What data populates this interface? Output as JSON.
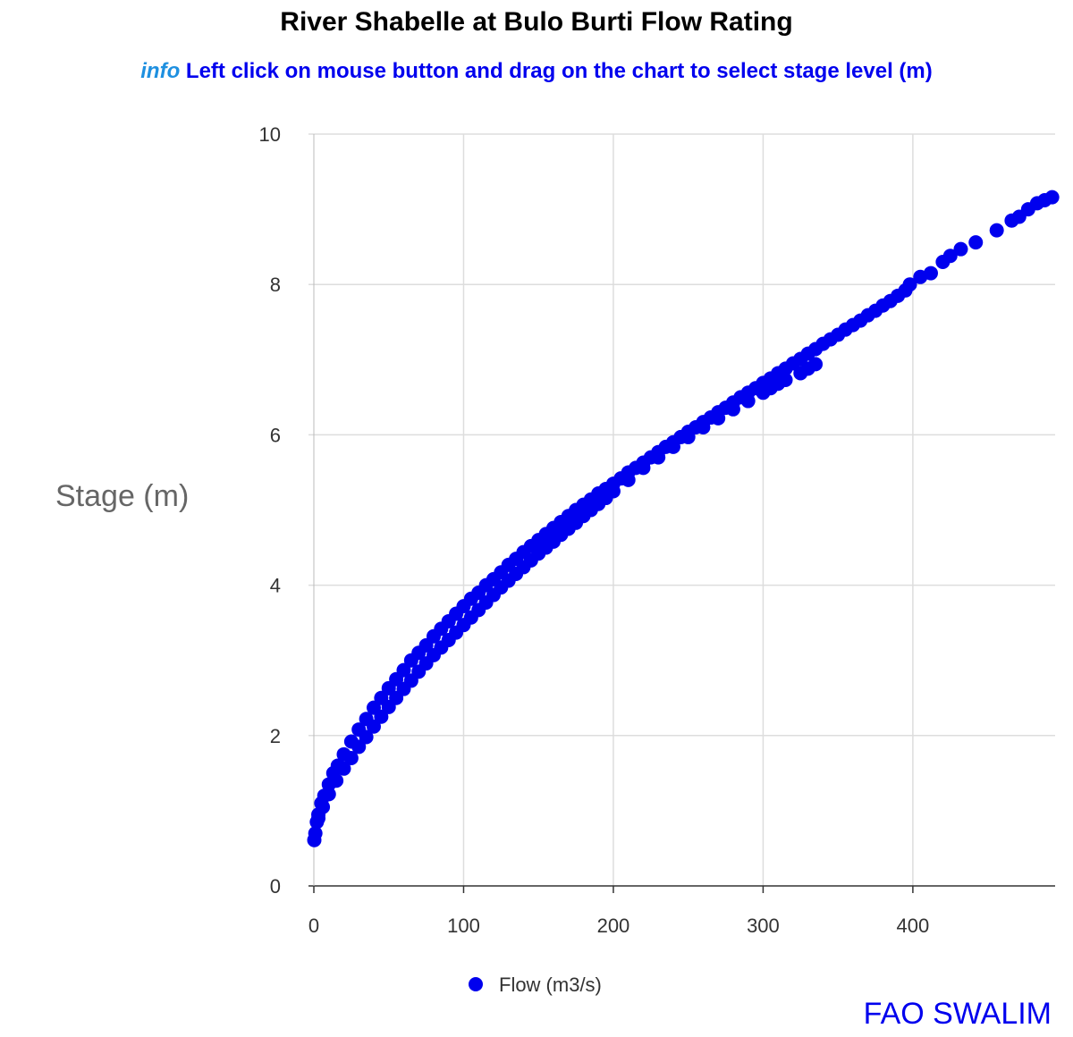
{
  "header": {
    "title": "River Shabelle at Bulo Burti Flow Rating",
    "info_tag": "info",
    "info_text": "Left click on mouse button and drag on the chart to select stage level (m)"
  },
  "footer": {
    "credit": "FAO SWALIM"
  },
  "chart_data": {
    "type": "scatter",
    "ylabel": "Stage (m)",
    "xlabel": "",
    "xlim": [
      0,
      495
    ],
    "ylim": [
      0,
      10
    ],
    "x_ticks": [
      0,
      100,
      200,
      300,
      400
    ],
    "y_ticks": [
      0,
      2,
      4,
      6,
      8,
      10
    ],
    "grid": true,
    "legend_position": "bottom",
    "series": [
      {
        "name": "Flow (m3/s)",
        "color": "#0000ee",
        "points": [
          {
            "x": 0.3,
            "y": 0.61
          },
          {
            "x": 1,
            "y": 0.7
          },
          {
            "x": 2,
            "y": 0.85
          },
          {
            "x": 3,
            "y": 0.95
          },
          {
            "x": 5,
            "y": 1.1
          },
          {
            "x": 7,
            "y": 1.2
          },
          {
            "x": 10,
            "y": 1.35
          },
          {
            "x": 13,
            "y": 1.5
          },
          {
            "x": 16,
            "y": 1.6
          },
          {
            "x": 20,
            "y": 1.75
          },
          {
            "x": 25,
            "y": 1.92
          },
          {
            "x": 30,
            "y": 2.08
          },
          {
            "x": 35,
            "y": 2.22
          },
          {
            "x": 40,
            "y": 2.37
          },
          {
            "x": 45,
            "y": 2.5
          },
          {
            "x": 50,
            "y": 2.63
          },
          {
            "x": 55,
            "y": 2.75
          },
          {
            "x": 60,
            "y": 2.87
          },
          {
            "x": 65,
            "y": 3.0
          },
          {
            "x": 70,
            "y": 3.1
          },
          {
            "x": 75,
            "y": 3.2
          },
          {
            "x": 80,
            "y": 3.32
          },
          {
            "x": 85,
            "y": 3.42
          },
          {
            "x": 90,
            "y": 3.52
          },
          {
            "x": 95,
            "y": 3.62
          },
          {
            "x": 100,
            "y": 3.72
          },
          {
            "x": 105,
            "y": 3.82
          },
          {
            "x": 110,
            "y": 3.9
          },
          {
            "x": 115,
            "y": 4.0
          },
          {
            "x": 120,
            "y": 4.08
          },
          {
            "x": 125,
            "y": 4.17
          },
          {
            "x": 130,
            "y": 4.27
          },
          {
            "x": 135,
            "y": 4.35
          },
          {
            "x": 140,
            "y": 4.44
          },
          {
            "x": 145,
            "y": 4.52
          },
          {
            "x": 150,
            "y": 4.6
          },
          {
            "x": 155,
            "y": 4.68
          },
          {
            "x": 160,
            "y": 4.76
          },
          {
            "x": 165,
            "y": 4.84
          },
          {
            "x": 170,
            "y": 4.92
          },
          {
            "x": 175,
            "y": 5.0
          },
          {
            "x": 180,
            "y": 5.07
          },
          {
            "x": 185,
            "y": 5.14
          },
          {
            "x": 190,
            "y": 5.22
          },
          {
            "x": 195,
            "y": 5.28
          },
          {
            "x": 200,
            "y": 5.35
          },
          {
            "x": 205,
            "y": 5.42
          },
          {
            "x": 210,
            "y": 5.5
          },
          {
            "x": 215,
            "y": 5.56
          },
          {
            "x": 220,
            "y": 5.63
          },
          {
            "x": 225,
            "y": 5.7
          },
          {
            "x": 230,
            "y": 5.77
          },
          {
            "x": 235,
            "y": 5.84
          },
          {
            "x": 240,
            "y": 5.9
          },
          {
            "x": 245,
            "y": 5.97
          },
          {
            "x": 250,
            "y": 6.04
          },
          {
            "x": 255,
            "y": 6.1
          },
          {
            "x": 260,
            "y": 6.17
          },
          {
            "x": 265,
            "y": 6.23
          },
          {
            "x": 270,
            "y": 6.3
          },
          {
            "x": 275,
            "y": 6.36
          },
          {
            "x": 280,
            "y": 6.43
          },
          {
            "x": 285,
            "y": 6.5
          },
          {
            "x": 290,
            "y": 6.56
          },
          {
            "x": 295,
            "y": 6.62
          },
          {
            "x": 300,
            "y": 6.69
          },
          {
            "x": 305,
            "y": 6.75
          },
          {
            "x": 310,
            "y": 6.82
          },
          {
            "x": 315,
            "y": 6.88
          },
          {
            "x": 320,
            "y": 6.95
          },
          {
            "x": 325,
            "y": 7.01
          },
          {
            "x": 330,
            "y": 7.08
          },
          {
            "x": 335,
            "y": 7.14
          },
          {
            "x": 340,
            "y": 7.21
          },
          {
            "x": 345,
            "y": 7.27
          },
          {
            "x": 350,
            "y": 7.33
          },
          {
            "x": 355,
            "y": 7.4
          },
          {
            "x": 360,
            "y": 7.46
          },
          {
            "x": 365,
            "y": 7.52
          },
          {
            "x": 370,
            "y": 7.59
          },
          {
            "x": 375,
            "y": 7.65
          },
          {
            "x": 380,
            "y": 7.72
          },
          {
            "x": 385,
            "y": 7.78
          },
          {
            "x": 390,
            "y": 7.85
          },
          {
            "x": 395,
            "y": 7.92
          },
          {
            "x": 398,
            "y": 8.0
          },
          {
            "x": 3,
            "y": 0.9
          },
          {
            "x": 6,
            "y": 1.05
          },
          {
            "x": 10,
            "y": 1.22
          },
          {
            "x": 15,
            "y": 1.4
          },
          {
            "x": 20,
            "y": 1.56
          },
          {
            "x": 25,
            "y": 1.7
          },
          {
            "x": 30,
            "y": 1.85
          },
          {
            "x": 35,
            "y": 1.98
          },
          {
            "x": 40,
            "y": 2.12
          },
          {
            "x": 45,
            "y": 2.25
          },
          {
            "x": 50,
            "y": 2.38
          },
          {
            "x": 55,
            "y": 2.5
          },
          {
            "x": 60,
            "y": 2.62
          },
          {
            "x": 65,
            "y": 2.73
          },
          {
            "x": 70,
            "y": 2.85
          },
          {
            "x": 75,
            "y": 2.96
          },
          {
            "x": 80,
            "y": 3.07
          },
          {
            "x": 85,
            "y": 3.17
          },
          {
            "x": 90,
            "y": 3.27
          },
          {
            "x": 95,
            "y": 3.37
          },
          {
            "x": 100,
            "y": 3.47
          },
          {
            "x": 105,
            "y": 3.57
          },
          {
            "x": 110,
            "y": 3.67
          },
          {
            "x": 115,
            "y": 3.77
          },
          {
            "x": 120,
            "y": 3.87
          },
          {
            "x": 125,
            "y": 3.97
          },
          {
            "x": 130,
            "y": 4.06
          },
          {
            "x": 135,
            "y": 4.15
          },
          {
            "x": 140,
            "y": 4.24
          },
          {
            "x": 145,
            "y": 4.33
          },
          {
            "x": 150,
            "y": 4.42
          },
          {
            "x": 155,
            "y": 4.5
          },
          {
            "x": 160,
            "y": 4.58
          },
          {
            "x": 165,
            "y": 4.67
          },
          {
            "x": 170,
            "y": 4.75
          },
          {
            "x": 175,
            "y": 4.83
          },
          {
            "x": 180,
            "y": 4.92
          },
          {
            "x": 185,
            "y": 5.0
          },
          {
            "x": 190,
            "y": 5.08
          },
          {
            "x": 195,
            "y": 5.16
          },
          {
            "x": 200,
            "y": 5.25
          },
          {
            "x": 210,
            "y": 5.4
          },
          {
            "x": 220,
            "y": 5.56
          },
          {
            "x": 230,
            "y": 5.7
          },
          {
            "x": 240,
            "y": 5.84
          },
          {
            "x": 250,
            "y": 5.97
          },
          {
            "x": 260,
            "y": 6.1
          },
          {
            "x": 270,
            "y": 6.22
          },
          {
            "x": 280,
            "y": 6.34
          },
          {
            "x": 290,
            "y": 6.45
          },
          {
            "x": 300,
            "y": 6.56
          },
          {
            "x": 305,
            "y": 6.62
          },
          {
            "x": 310,
            "y": 6.68
          },
          {
            "x": 315,
            "y": 6.73
          },
          {
            "x": 325,
            "y": 6.82
          },
          {
            "x": 330,
            "y": 6.88
          },
          {
            "x": 335,
            "y": 6.94
          },
          {
            "x": 405,
            "y": 8.1
          },
          {
            "x": 412,
            "y": 8.15
          },
          {
            "x": 420,
            "y": 8.3
          },
          {
            "x": 425,
            "y": 8.38
          },
          {
            "x": 432,
            "y": 8.47
          },
          {
            "x": 442,
            "y": 8.56
          },
          {
            "x": 456,
            "y": 8.72
          },
          {
            "x": 466,
            "y": 8.85
          },
          {
            "x": 471,
            "y": 8.9
          },
          {
            "x": 477,
            "y": 9.0
          },
          {
            "x": 483,
            "y": 9.08
          },
          {
            "x": 488,
            "y": 9.12
          },
          {
            "x": 493,
            "y": 9.16
          }
        ]
      }
    ]
  }
}
